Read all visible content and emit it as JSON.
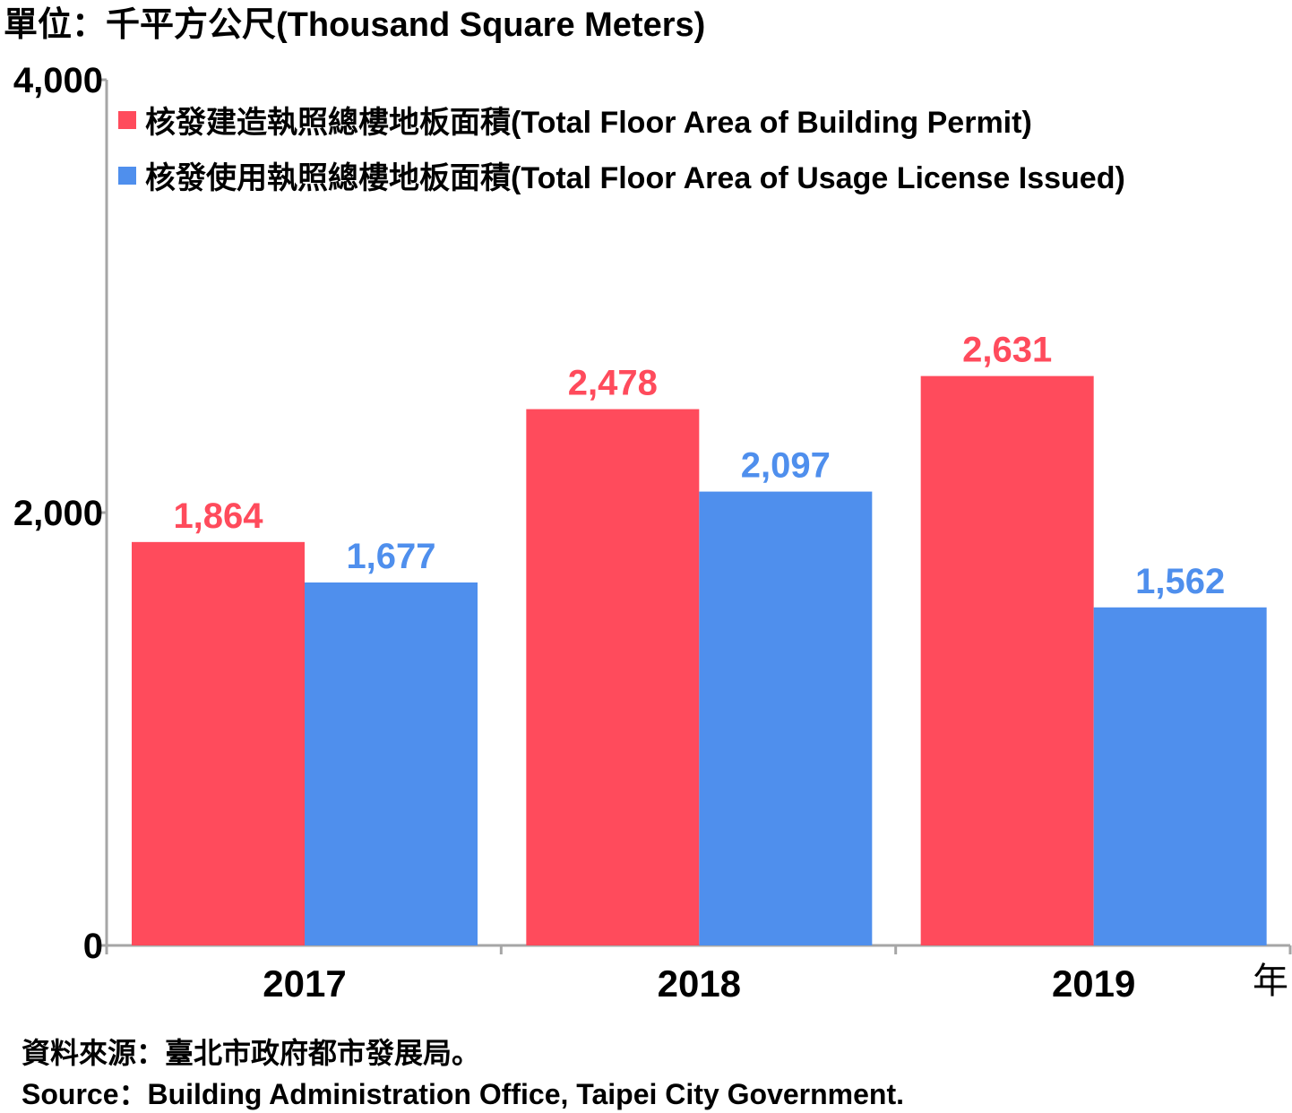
{
  "chart_data": {
    "type": "bar",
    "unit_label": "單位：千平方公尺(Thousand Square Meters)",
    "categories": [
      "2017",
      "2018",
      "2019"
    ],
    "x_suffix": "年",
    "y_ticks": [
      {
        "value": 0,
        "label": "0"
      },
      {
        "value": 2000,
        "label": "2,000"
      },
      {
        "value": 4000,
        "label": "4,000"
      }
    ],
    "ylim": [
      0,
      4000
    ],
    "legend_position": "top-left",
    "series": [
      {
        "name": "核發建造執照總樓地板面積(Total Floor Area of Building Permit)",
        "color": "#ff4b5c",
        "values": [
          1864,
          2478,
          2631
        ],
        "labels": [
          "1,864",
          "2,478",
          "2,631"
        ]
      },
      {
        "name": "核發使用執照總樓地板面積(Total Floor Area of Usage License Issued)",
        "color": "#4f8fed",
        "values": [
          1677,
          2097,
          1562
        ],
        "labels": [
          "1,677",
          "2,097",
          "1,562"
        ]
      }
    ],
    "source_zh": "資料來源：臺北市政府都市發展局。",
    "source_en": "Source：Building Administration Office, Taipei City Government."
  }
}
